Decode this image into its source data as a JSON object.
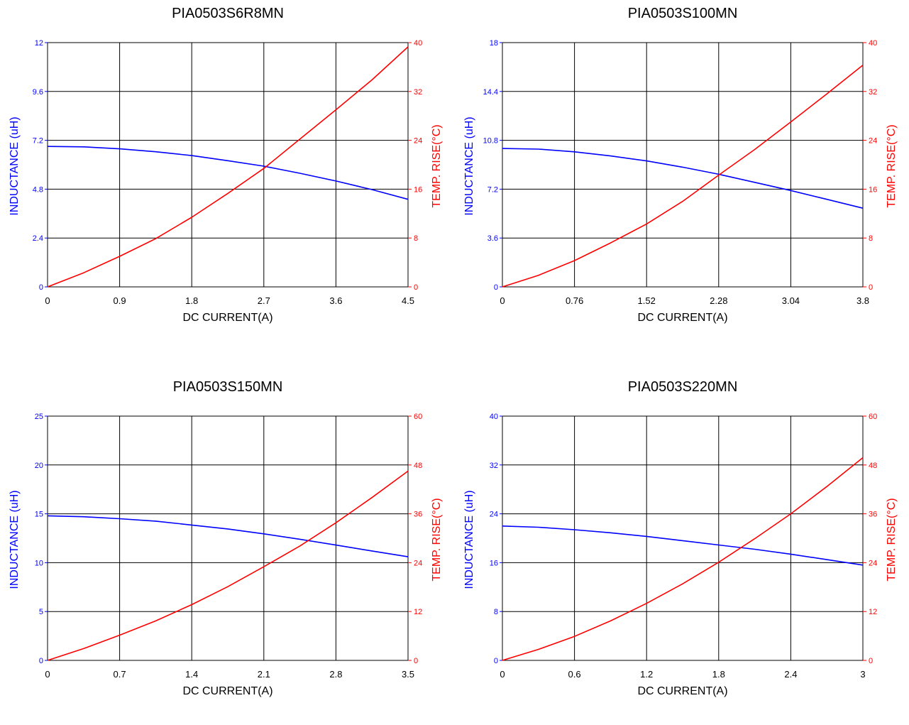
{
  "colors": {
    "inductance": "#0000ff",
    "temp_rise": "#ff0000",
    "grid": "#000000",
    "background": "#ffffff"
  },
  "chart_data": [
    {
      "type": "line",
      "title": "PIA0503S6R8MN",
      "xlabel": "DC CURRENT(A)",
      "ylabel_left": "INDUCTANCE (uH)",
      "ylabel_right": "TEMP. RISE(°C)",
      "xlim": [
        0,
        4.5
      ],
      "ylim_left": [
        0,
        12
      ],
      "ylim_right": [
        0,
        40
      ],
      "xticks": [
        "0",
        "0.9",
        "1.8",
        "2.7",
        "3.6",
        "4.5"
      ],
      "yticks_left": [
        "0",
        "2.4",
        "4.8",
        "7.2",
        "9.6",
        "12"
      ],
      "yticks_right": [
        "0",
        "8",
        "16",
        "24",
        "32",
        "40"
      ],
      "grid": true,
      "x": [
        0,
        0.45,
        0.9,
        1.35,
        1.8,
        2.25,
        2.7,
        3.15,
        3.6,
        4.05,
        4.5
      ],
      "series": [
        {
          "axis": "left",
          "color": "#0000ff",
          "values": [
            6.9,
            6.88,
            6.78,
            6.64,
            6.45,
            6.2,
            5.93,
            5.58,
            5.2,
            4.78,
            4.3
          ]
        },
        {
          "axis": "right",
          "color": "#ff0000",
          "values": [
            0,
            2.3,
            5,
            7.9,
            11.4,
            15.3,
            19.4,
            24.2,
            29.0,
            33.9,
            39.3
          ]
        }
      ]
    },
    {
      "type": "line",
      "title": "PIA0503S100MN",
      "xlabel": "DC CURRENT(A)",
      "ylabel_left": "INDUCTANCE (uH)",
      "ylabel_right": "TEMP. RISE(°C)",
      "xlim": [
        0,
        3.8
      ],
      "ylim_left": [
        0,
        18
      ],
      "ylim_right": [
        0,
        40
      ],
      "xticks": [
        "0",
        "0.76",
        "1.52",
        "2.28",
        "3.04",
        "3.8"
      ],
      "yticks_left": [
        "0",
        "3.6",
        "7.2",
        "10.8",
        "14.4",
        "18"
      ],
      "yticks_right": [
        "0",
        "8",
        "16",
        "24",
        "32",
        "40"
      ],
      "grid": true,
      "x": [
        0,
        0.38,
        0.76,
        1.14,
        1.52,
        1.9,
        2.28,
        2.66,
        3.04,
        3.42,
        3.8
      ],
      "series": [
        {
          "axis": "left",
          "color": "#0000ff",
          "values": [
            10.2,
            10.15,
            9.95,
            9.65,
            9.28,
            8.82,
            8.3,
            7.7,
            7.1,
            6.45,
            5.8
          ]
        },
        {
          "axis": "right",
          "color": "#ff0000",
          "values": [
            0,
            1.9,
            4.3,
            7.2,
            10.3,
            14.0,
            18.3,
            22.5,
            27.0,
            31.6,
            36.3
          ]
        }
      ]
    },
    {
      "type": "line",
      "title": "PIA0503S150MN",
      "xlabel": "DC CURRENT(A)",
      "ylabel_left": "INDUCTANCE (uH)",
      "ylabel_right": "TEMP. RISE(°C)",
      "xlim": [
        0,
        3.5
      ],
      "ylim_left": [
        0,
        25
      ],
      "ylim_right": [
        0,
        60
      ],
      "xticks": [
        "0",
        "0.7",
        "1.4",
        "2.1",
        "2.8",
        "3.5"
      ],
      "yticks_left": [
        "0",
        "5",
        "10",
        "15",
        "20",
        "25"
      ],
      "yticks_right": [
        "0",
        "12",
        "24",
        "36",
        "48",
        "60"
      ],
      "grid": true,
      "x": [
        0,
        0.35,
        0.7,
        1.05,
        1.4,
        1.75,
        2.1,
        2.45,
        2.8,
        3.15,
        3.5
      ],
      "series": [
        {
          "axis": "left",
          "color": "#0000ff",
          "values": [
            14.8,
            14.7,
            14.5,
            14.25,
            13.85,
            13.45,
            12.95,
            12.4,
            11.8,
            11.2,
            10.6
          ]
        },
        {
          "axis": "right",
          "color": "#ff0000",
          "values": [
            0,
            2.9,
            6.2,
            9.7,
            13.7,
            18.1,
            23.0,
            28.1,
            33.8,
            40.0,
            46.5
          ]
        }
      ]
    },
    {
      "type": "line",
      "title": "PIA0503S220MN",
      "xlabel": "DC CURRENT(A)",
      "ylabel_left": "INDUCTANCE (uH)",
      "ylabel_right": "TEMP. RISE(°C)",
      "xlim": [
        0,
        3
      ],
      "ylim_left": [
        0,
        40
      ],
      "ylim_right": [
        0,
        60
      ],
      "xticks": [
        "0",
        "0.6",
        "1.2",
        "1.8",
        "2.4",
        "3"
      ],
      "yticks_left": [
        "0",
        "8",
        "16",
        "24",
        "32",
        "40"
      ],
      "yticks_right": [
        "0",
        "12",
        "24",
        "36",
        "48",
        "60"
      ],
      "grid": true,
      "x": [
        0,
        0.3,
        0.6,
        0.9,
        1.2,
        1.5,
        1.8,
        2.1,
        2.4,
        2.7,
        3.0
      ],
      "series": [
        {
          "axis": "left",
          "color": "#0000ff",
          "values": [
            22.0,
            21.8,
            21.4,
            20.9,
            20.3,
            19.6,
            18.9,
            18.2,
            17.4,
            16.5,
            15.6
          ]
        },
        {
          "axis": "right",
          "color": "#ff0000",
          "values": [
            0,
            2.7,
            5.9,
            9.7,
            14.0,
            18.8,
            24.1,
            29.9,
            36.0,
            42.7,
            49.8
          ]
        }
      ]
    }
  ]
}
